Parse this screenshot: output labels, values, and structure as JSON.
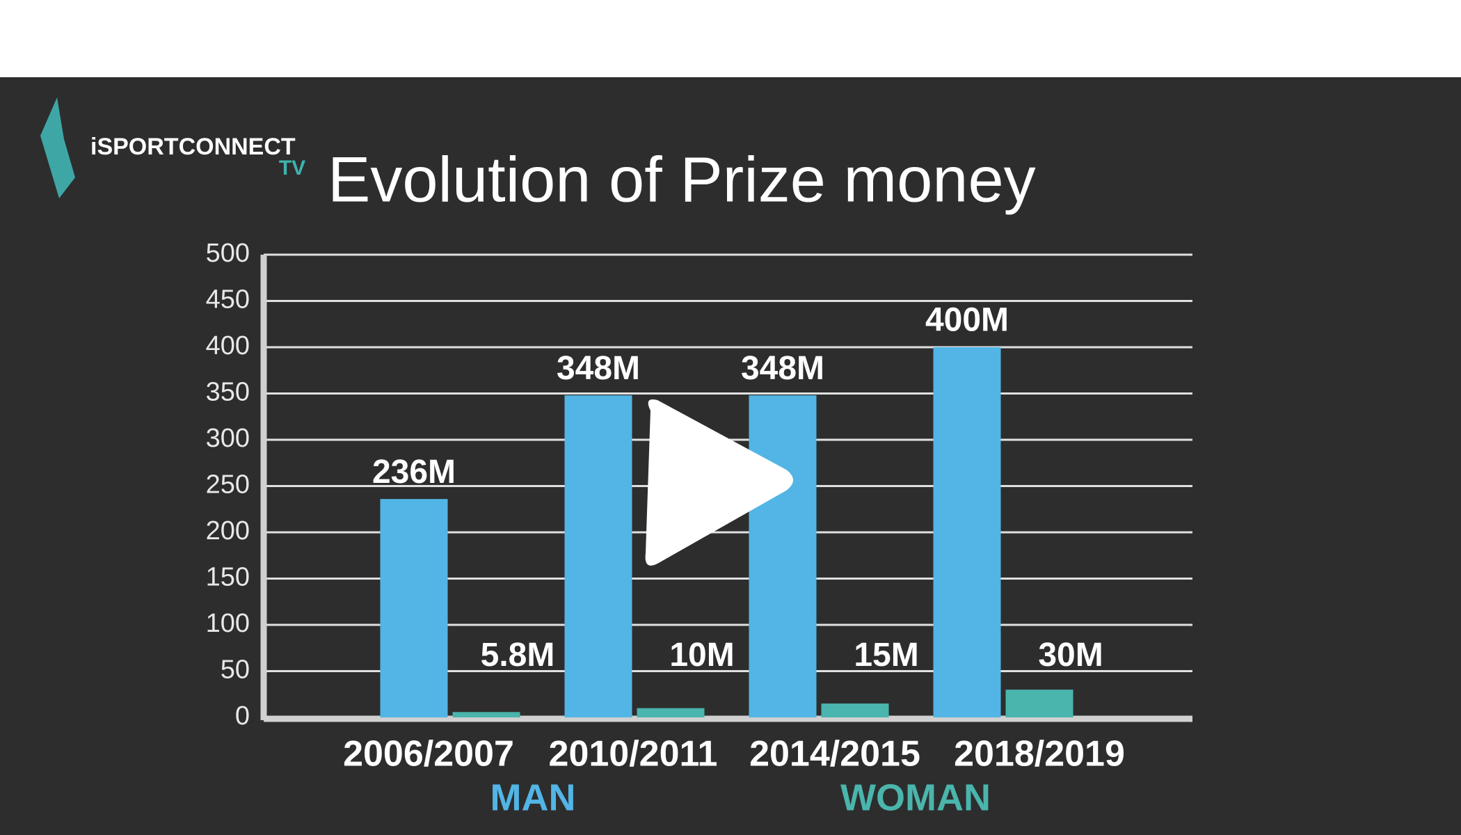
{
  "logo": {
    "brand": "iSPORTCONNECT",
    "sub": "TV"
  },
  "chart_data": {
    "type": "bar",
    "title": "Evolution of Prize money",
    "categories": [
      "2006/2007",
      "2010/2011",
      "2014/2015",
      "2018/2019"
    ],
    "series": [
      {
        "name": "MAN",
        "color": "#52b5e5",
        "values": [
          236,
          348,
          348,
          400
        ],
        "value_labels": [
          "236M",
          "348M",
          "348M",
          "400M"
        ]
      },
      {
        "name": "WOMAN",
        "color": "#4ab5ad",
        "values": [
          5.8,
          10,
          15,
          30
        ],
        "value_labels": [
          "5.8M",
          "10M",
          "15M",
          "30M"
        ]
      }
    ],
    "ylim": [
      0,
      500
    ],
    "yticks": [
      0,
      50,
      100,
      150,
      200,
      250,
      300,
      350,
      400,
      450,
      500
    ],
    "grid": true
  }
}
